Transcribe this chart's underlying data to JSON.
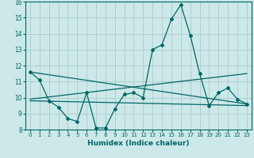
{
  "xlabel": "Humidex (Indice chaleur)",
  "ylabel": "",
  "xlim": [
    -0.5,
    23.5
  ],
  "ylim": [
    8,
    16
  ],
  "xticks": [
    0,
    1,
    2,
    3,
    4,
    5,
    6,
    7,
    8,
    9,
    10,
    11,
    12,
    13,
    14,
    15,
    16,
    17,
    18,
    19,
    20,
    21,
    22,
    23
  ],
  "yticks": [
    8,
    9,
    10,
    11,
    12,
    13,
    14,
    15,
    16
  ],
  "bg_color": "#cce8e8",
  "grid_color": "#aacccc",
  "line_color": "#006666",
  "line1_x": [
    0,
    1,
    2,
    3,
    4,
    5,
    6,
    7,
    8,
    9,
    10,
    11,
    12,
    13,
    14,
    15,
    16,
    17,
    18,
    19,
    20,
    21,
    22,
    23
  ],
  "line1_y": [
    11.6,
    11.1,
    9.8,
    9.4,
    8.7,
    8.5,
    10.3,
    8.1,
    8.1,
    9.3,
    10.2,
    10.3,
    10.0,
    13.0,
    13.3,
    14.9,
    15.8,
    13.9,
    11.5,
    9.5,
    10.3,
    10.6,
    9.9,
    9.6
  ],
  "line2_x": [
    0,
    23
  ],
  "line2_y": [
    11.6,
    9.6
  ],
  "line3_x": [
    0,
    23
  ],
  "line3_y": [
    9.8,
    9.5
  ],
  "line4_x": [
    0,
    23
  ],
  "line4_y": [
    9.9,
    11.5
  ]
}
